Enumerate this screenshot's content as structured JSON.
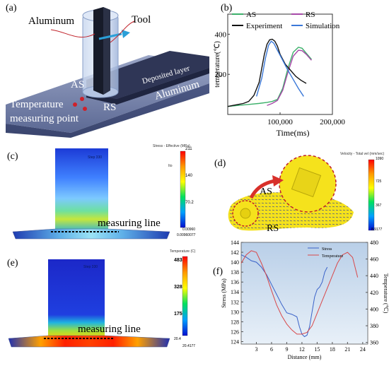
{
  "panels": {
    "a": {
      "tag": "(a)",
      "labels": {
        "aluminum_top": "Aluminum",
        "tool": "Tool",
        "deposited_layer": "Deposited layer",
        "as": "AS",
        "rs": "RS",
        "aluminum_base": "Aluminum",
        "temp_point_1": "Temperature",
        "temp_point_2": "measuring point"
      }
    },
    "b": {
      "tag": "(b)"
    },
    "c": {
      "tag": "(c)",
      "legend_title": "Stress - Effective (MPa)",
      "legend_ticks": [
        "211",
        "140",
        "70.2",
        "0.00960"
      ],
      "legend_min": "0.00960077",
      "legend_unit": "Ito",
      "measuring_line": "measuring line",
      "step_text": "Step 330"
    },
    "d": {
      "tag": "(d)",
      "legend_title": "Velocity - Total vel (mm/sec)",
      "legend_ticks": [
        "1090",
        "725",
        "367",
        "8.9177"
      ],
      "as": "AS",
      "rs": "RS"
    },
    "e": {
      "tag": "(e)",
      "legend_title": "Temperature (C)",
      "legend_ticks": [
        "483",
        "328",
        "175",
        "20.4"
      ],
      "legend_min": "20.4177",
      "measuring_line": "measuring line",
      "step_text": "Step 330"
    },
    "f": {
      "tag": "(f)"
    }
  },
  "colors": {
    "tool": "#1a1f2e",
    "tool_sleeve": "#b7c9e6",
    "base_plate": "#5a6790",
    "arrow": "#2a9fd8",
    "temp_point": "#d0202a",
    "as_line": "#3cb06a",
    "rs_line": "#a74aa8",
    "experiment_line": "#111111",
    "simulation_line": "#3a78d8",
    "stress_line": "#3a62c8",
    "temperature_line": "#d8484a"
  },
  "chart_data": [
    {
      "type": "line",
      "panel": "b",
      "title": "",
      "xlabel": "Time(ms)",
      "ylabel": "temperature(℃)",
      "xlim": [
        0,
        200000
      ],
      "ylim": [
        0,
        500
      ],
      "x_ticks": [
        100000,
        200000
      ],
      "x_tick_labels": [
        "100,000",
        "200,000"
      ],
      "y_ticks": [
        200,
        400
      ],
      "y_tick_labels": [
        "200",
        "400"
      ],
      "legend_placement": "top",
      "series": [
        {
          "name": "AS",
          "color": "#3cb06a",
          "x": [
            0,
            20000,
            40000,
            60000,
            75000,
            85000,
            95000,
            105000,
            115000,
            125000,
            135000,
            142000,
            150000,
            160000
          ],
          "y": [
            40,
            45,
            50,
            55,
            60,
            65,
            75,
            130,
            230,
            310,
            335,
            330,
            305,
            275
          ]
        },
        {
          "name": "RS",
          "color": "#a74aa8",
          "x": [
            75000,
            85000,
            95000,
            105000,
            115000,
            125000,
            135000,
            142000,
            150000,
            160000
          ],
          "y": [
            45,
            55,
            70,
            120,
            210,
            290,
            320,
            318,
            300,
            270
          ]
        },
        {
          "name": "Experiment",
          "color": "#111111",
          "x": [
            0,
            10000,
            20000,
            30000,
            40000,
            50000,
            60000,
            65000,
            70000,
            75000,
            80000,
            85000,
            90000,
            95000,
            100000,
            110000,
            120000,
            130000,
            140000,
            150000
          ],
          "y": [
            40,
            45,
            50,
            55,
            65,
            95,
            160,
            230,
            300,
            350,
            372,
            375,
            365,
            340,
            300,
            250,
            220,
            190,
            170,
            155
          ]
        },
        {
          "name": "Simulation",
          "color": "#3a78d8",
          "x": [
            55000,
            65000,
            72000,
            78000,
            83000,
            88000,
            95000,
            105000,
            115000,
            125000,
            135000,
            145000
          ],
          "y": [
            90,
            180,
            280,
            345,
            365,
            355,
            320,
            270,
            220,
            175,
            130,
            90
          ]
        }
      ]
    },
    {
      "type": "line",
      "panel": "f",
      "title": "",
      "xlabel": "Distance (mm)",
      "ylabel": "Stress (MPa)",
      "ylabel_right": "Temperature (℃)",
      "xlim": [
        0,
        25
      ],
      "ylim": [
        123.5,
        144
      ],
      "ylim_right": [
        358,
        480
      ],
      "x_ticks": [
        3,
        6,
        9,
        12,
        15,
        18,
        21,
        24
      ],
      "y_ticks": [
        124,
        126,
        128,
        130,
        132,
        134,
        136,
        138,
        140,
        142,
        144
      ],
      "y_ticks_right": [
        360,
        380,
        400,
        420,
        440,
        460,
        480
      ],
      "legend_placement": "top-right",
      "series": [
        {
          "name": "Stress",
          "axis": "left",
          "color": "#3a62c8",
          "x": [
            0,
            1,
            2,
            3,
            4,
            5,
            6,
            7,
            8,
            9,
            10,
            11,
            11.5,
            12,
            12.5,
            13,
            13.5,
            14,
            14.5,
            15,
            15.5,
            16,
            16.5,
            17
          ],
          "y": [
            141.5,
            141,
            140.3,
            140,
            139,
            137.5,
            135.5,
            133.5,
            131.5,
            129.8,
            129.5,
            129,
            127,
            125.5,
            125,
            125.3,
            127,
            130,
            133,
            134.5,
            135,
            136,
            138,
            139
          ]
        },
        {
          "name": "Temperature",
          "axis": "right",
          "color": "#d8484a",
          "x": [
            0,
            1,
            2,
            3,
            4,
            5,
            6,
            7,
            8,
            9,
            10,
            11,
            12,
            13,
            14,
            15,
            16,
            17,
            18,
            19,
            20,
            21,
            22,
            23
          ],
          "y": [
            455,
            465,
            470,
            468,
            455,
            440,
            422,
            405,
            392,
            382,
            375,
            370,
            370,
            372,
            380,
            395,
            410,
            425,
            440,
            455,
            465,
            468,
            462,
            438
          ]
        }
      ]
    }
  ]
}
